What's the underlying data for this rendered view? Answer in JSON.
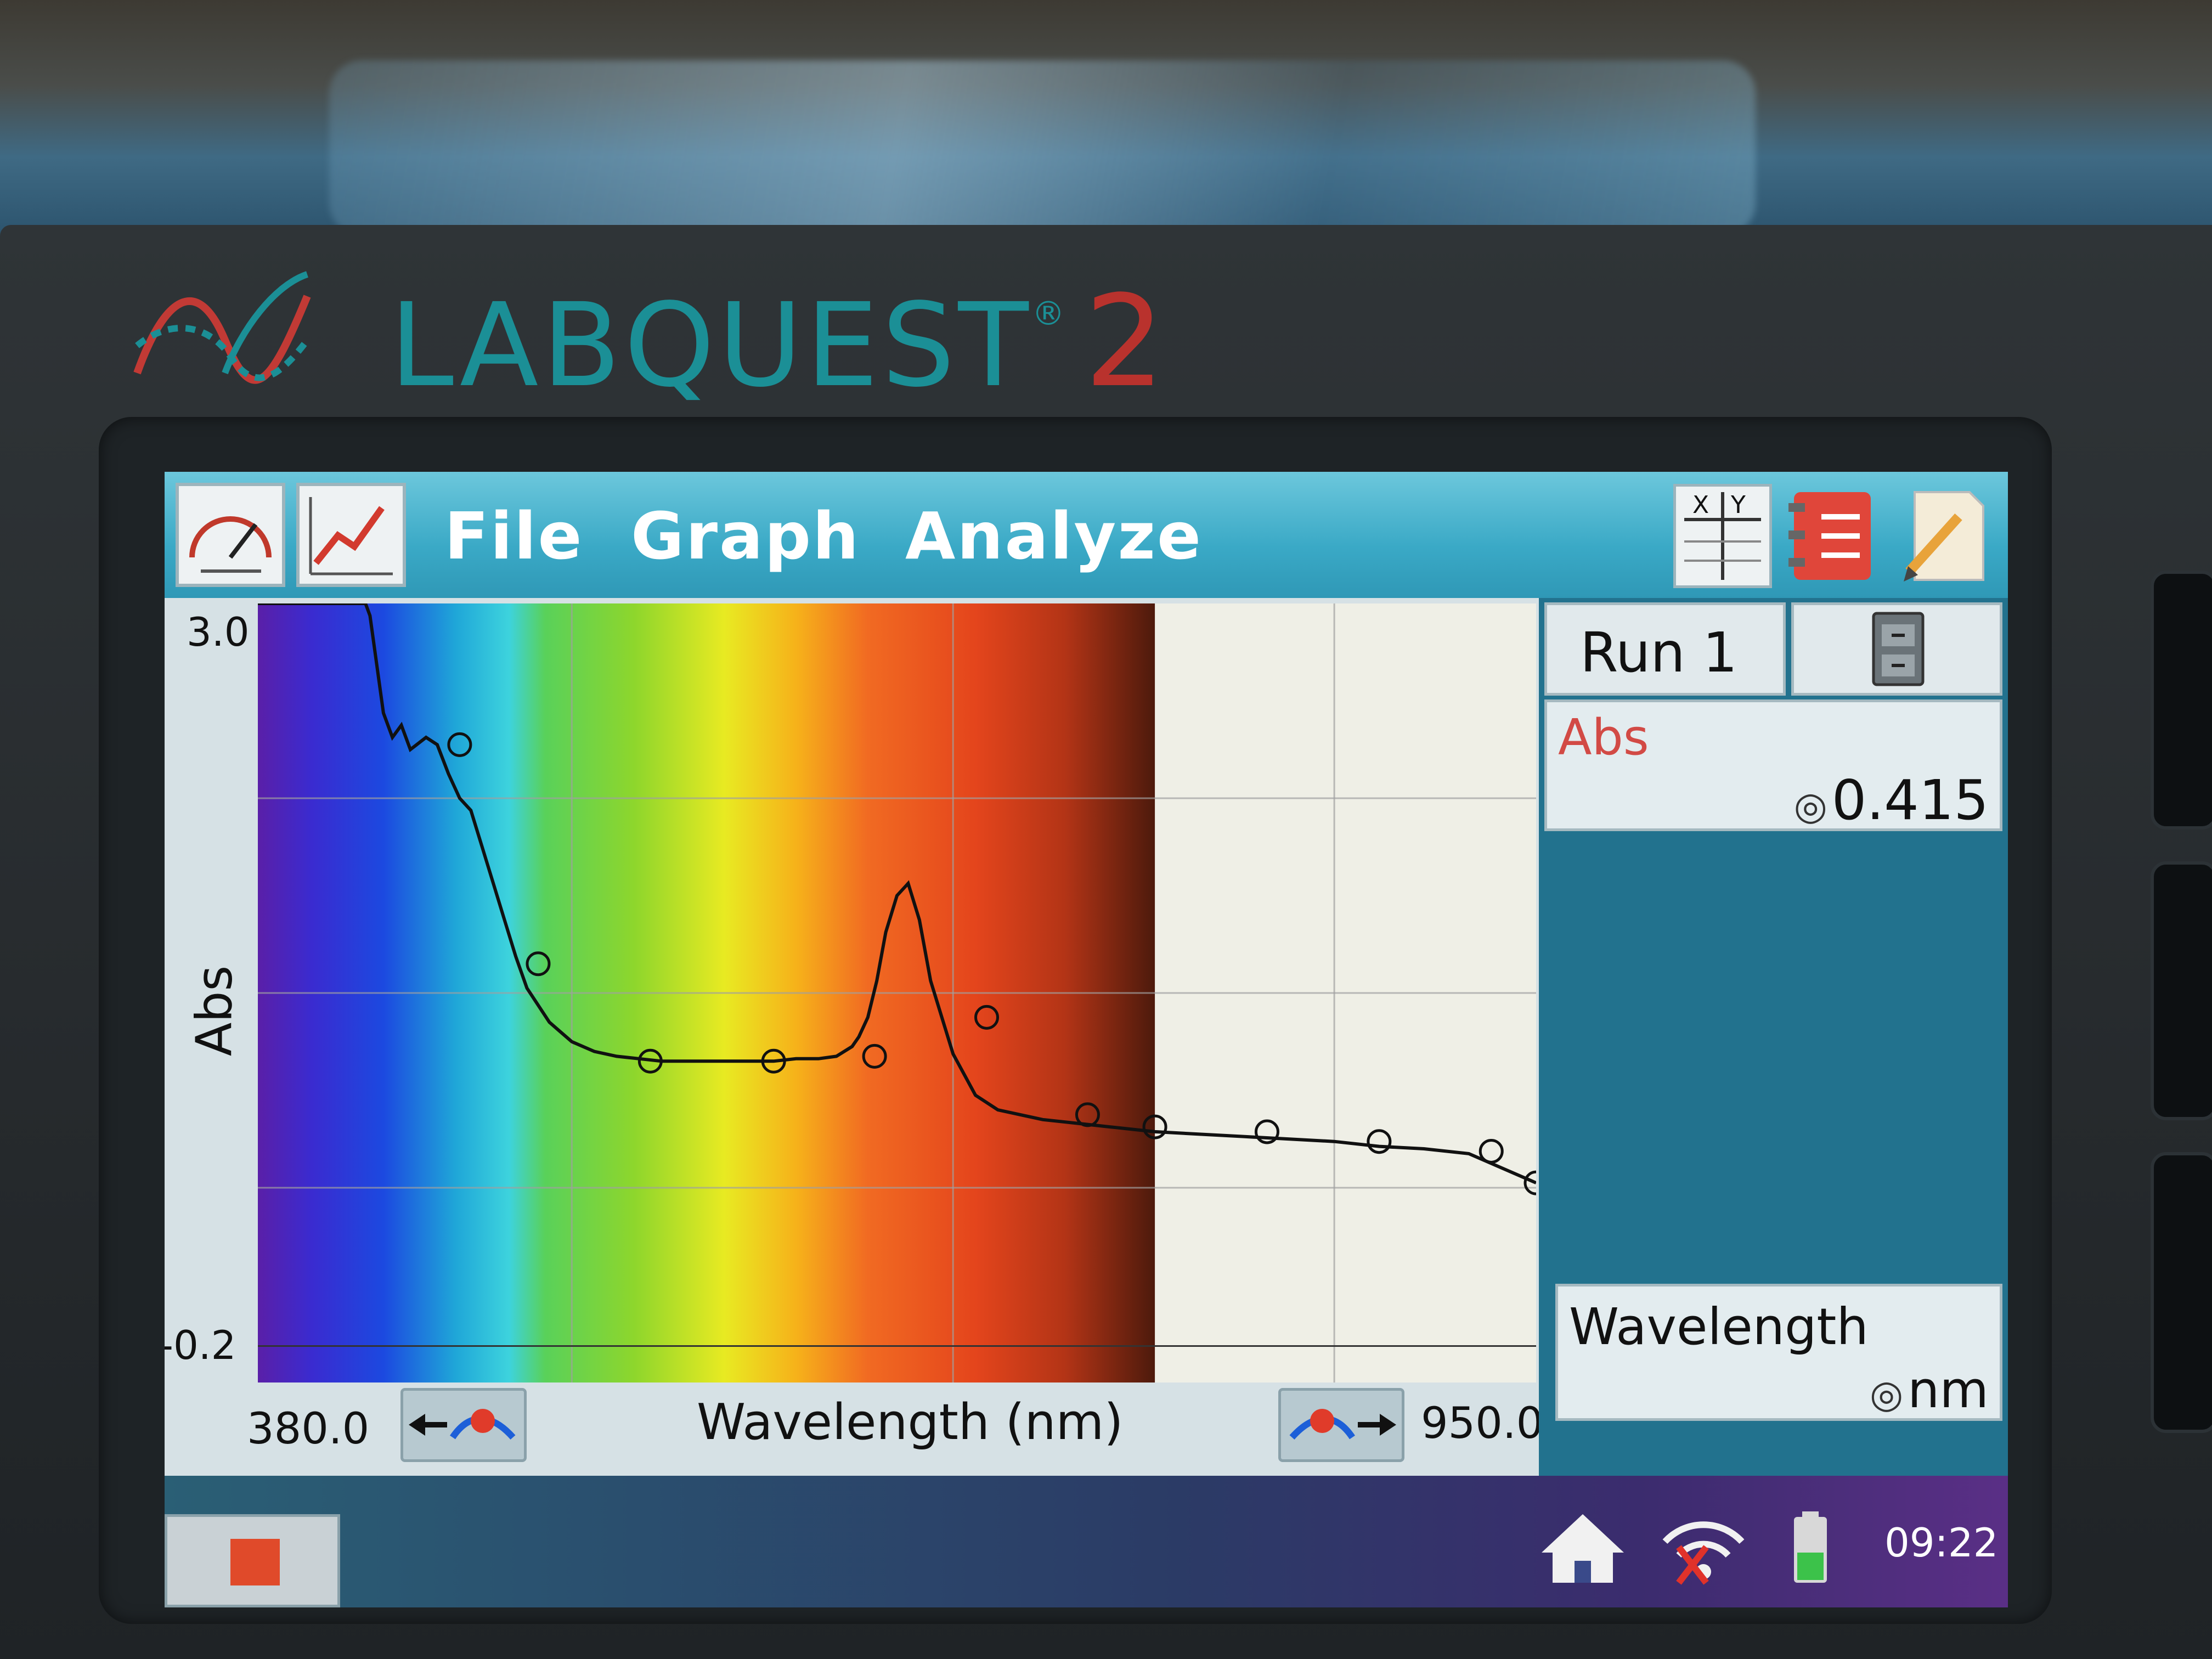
{
  "brand": {
    "name": "LABQUEST",
    "registered": "®",
    "model": "2",
    "colors": {
      "name": "#1b8f96",
      "model": "#b9322d"
    }
  },
  "toolbar": {
    "left_icons": [
      "meter-icon",
      "graph-icon"
    ],
    "menu": [
      "File",
      "Graph",
      "Analyze"
    ],
    "right_icons": [
      "table-icon",
      "notebook-icon",
      "notes-icon"
    ],
    "table_icon_letters": [
      "X",
      "Y"
    ]
  },
  "graph": {
    "y_label": "Abs",
    "y_max": "3.0",
    "y_min": "-0.2",
    "x_label": "Wavelength (nm)",
    "x_min": "380.0",
    "x_max": "950.0",
    "scroll_left_icon": "scroll-left-icon",
    "scroll_right_icon": "scroll-right-icon"
  },
  "chart_data": {
    "type": "line",
    "title": "",
    "xlabel": "Wavelength (nm)",
    "ylabel": "Abs",
    "xlim": [
      380,
      950
    ],
    "ylim": [
      -0.2,
      3.0
    ],
    "grid": true,
    "background": "visible spectrum gradient 380–780 nm",
    "series": [
      {
        "values_x": [
          380,
          400,
          410,
          420,
          428,
          430,
          436,
          440,
          444,
          448,
          455,
          460,
          465,
          470,
          475,
          480,
          485,
          490,
          495,
          500,
          510,
          520,
          530,
          540,
          550,
          560,
          570,
          580,
          590,
          600,
          610,
          620,
          630,
          638,
          645,
          648,
          652,
          656,
          660,
          665,
          670,
          675,
          680,
          690,
          700,
          710,
          720,
          730,
          740,
          750,
          760,
          770,
          780,
          800,
          820,
          840,
          860,
          880,
          900,
          920,
          940,
          950
        ],
        "values_y": [
          3.0,
          3.0,
          3.0,
          3.0,
          3.0,
          2.95,
          2.55,
          2.45,
          2.5,
          2.4,
          2.45,
          2.42,
          2.3,
          2.2,
          2.15,
          2.0,
          1.85,
          1.7,
          1.55,
          1.42,
          1.28,
          1.2,
          1.16,
          1.14,
          1.13,
          1.12,
          1.12,
          1.12,
          1.12,
          1.12,
          1.12,
          1.13,
          1.13,
          1.14,
          1.18,
          1.22,
          1.3,
          1.45,
          1.65,
          1.8,
          1.85,
          1.7,
          1.45,
          1.15,
          0.98,
          0.92,
          0.9,
          0.88,
          0.87,
          0.86,
          0.85,
          0.84,
          0.83,
          0.82,
          0.81,
          0.8,
          0.79,
          0.77,
          0.76,
          0.74,
          0.66,
          0.62
        ]
      }
    ],
    "markers_x": [
      470,
      505,
      555,
      610,
      655,
      705,
      750,
      780,
      830,
      880,
      930,
      950
    ],
    "markers_y": [
      2.42,
      1.52,
      1.12,
      1.12,
      1.14,
      1.3,
      0.9,
      0.85,
      0.83,
      0.79,
      0.75,
      0.62
    ]
  },
  "side_panel": {
    "run_label": "Run 1",
    "file_icon": "file-cabinet-icon",
    "meter_name": "Abs",
    "meter_value": "0.415",
    "wavelength_name": "Wavelength",
    "wavelength_unit": "nm"
  },
  "status": {
    "clock": "09:22",
    "icons": [
      "home-icon",
      "wifi-off-icon",
      "battery-icon"
    ],
    "stop_icon": "stop-icon"
  }
}
